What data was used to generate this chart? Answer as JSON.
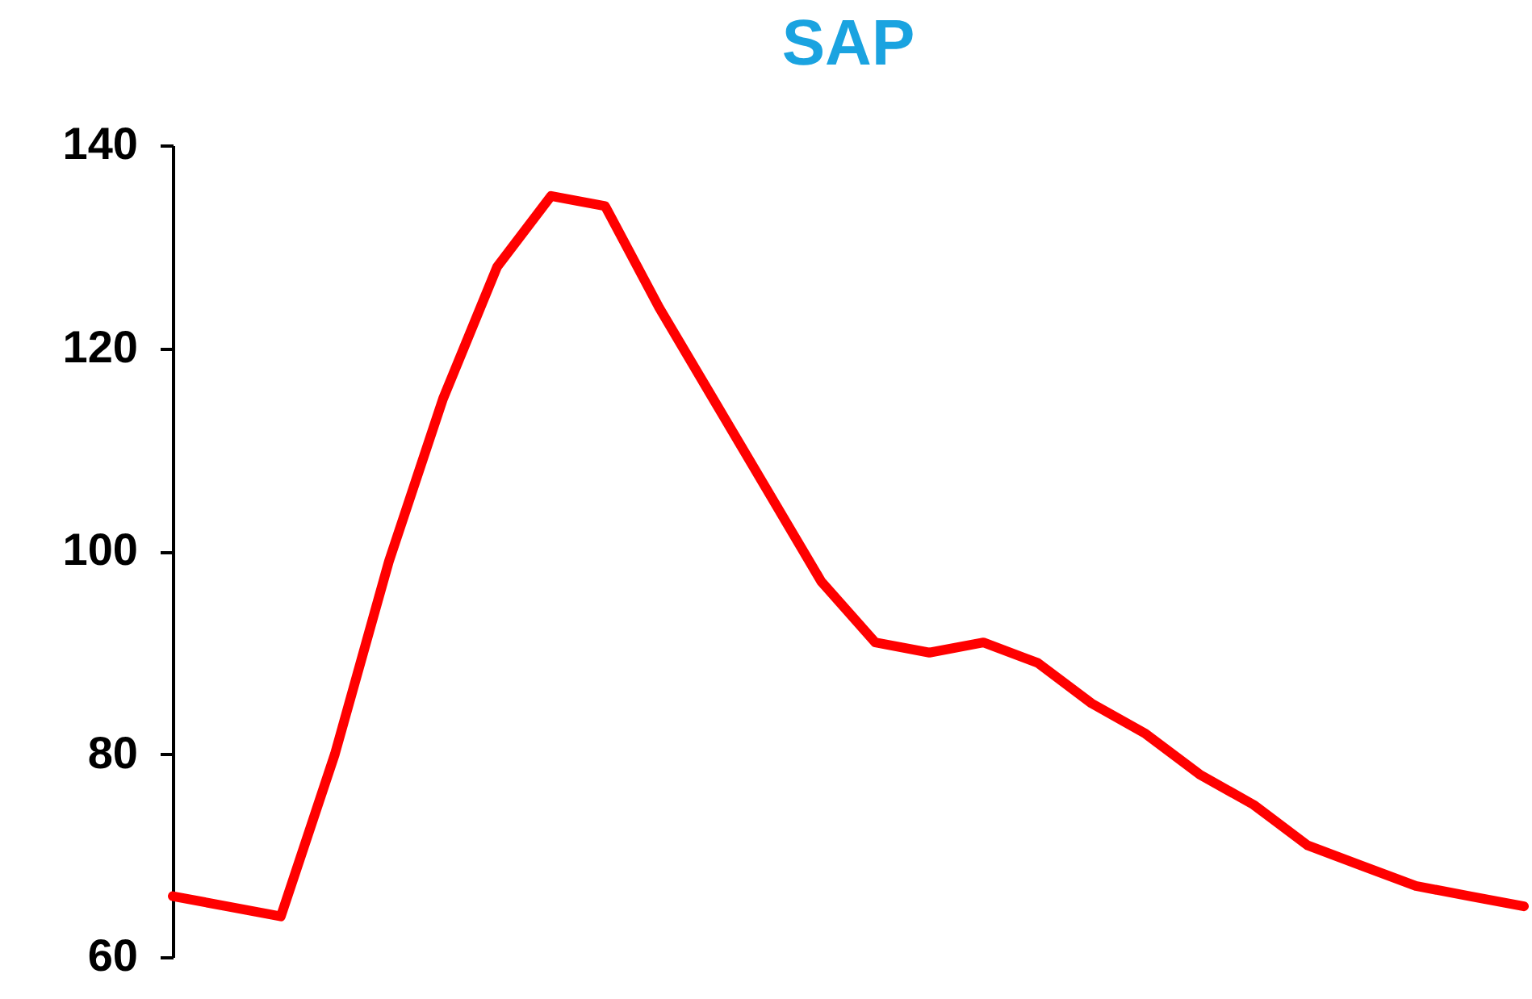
{
  "chart_data": {
    "type": "line",
    "title": "SAP",
    "categories": [
      null,
      null,
      null,
      null,
      null,
      null,
      null,
      null,
      null,
      null,
      null,
      null,
      null,
      null,
      null,
      null,
      null,
      null,
      null,
      null,
      null,
      null,
      null,
      null,
      null,
      null
    ],
    "series": [
      {
        "color": "#ff0000",
        "values": [
          66,
          65,
          64,
          80,
          99,
          115,
          128,
          135,
          134,
          124,
          115,
          106,
          97,
          91,
          90,
          91,
          89,
          85,
          82,
          78,
          75,
          71,
          69,
          67,
          66,
          65
        ]
      }
    ],
    "ylim": [
      60,
      140
    ],
    "yticks": [
      60,
      80,
      100,
      120,
      140
    ],
    "grid": false,
    "marker": "none",
    "line_style": "solid",
    "tick_labels": "y"
  }
}
